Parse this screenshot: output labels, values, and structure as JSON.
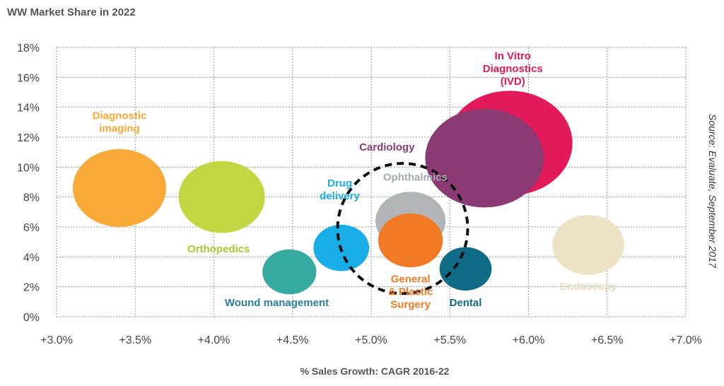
{
  "chart_data": {
    "type": "scatter",
    "title": "WW Market Share in 2022",
    "xlabel": "% Sales Growth: CAGR 2016-22",
    "ylabel": "",
    "source": "Source: Evaluate, September 2017",
    "xlim": [
      3.0,
      7.0
    ],
    "ylim": [
      0,
      18
    ],
    "x_ticks": [
      {
        "value": 3.0,
        "label": "+3.0%"
      },
      {
        "value": 3.5,
        "label": "+3.5%"
      },
      {
        "value": 4.0,
        "label": "+4.0%"
      },
      {
        "value": 4.5,
        "label": "+4.5%"
      },
      {
        "value": 5.0,
        "label": "+5.0%"
      },
      {
        "value": 5.5,
        "label": "+5.5%"
      },
      {
        "value": 6.0,
        "label": "+6.0%"
      },
      {
        "value": 6.5,
        "label": "+6.5%"
      },
      {
        "value": 7.0,
        "label": "+7.0%"
      }
    ],
    "y_ticks": [
      {
        "value": 0,
        "label": "0%"
      },
      {
        "value": 2,
        "label": "2%"
      },
      {
        "value": 4,
        "label": "4%"
      },
      {
        "value": 6,
        "label": "6%"
      },
      {
        "value": 8,
        "label": "8%"
      },
      {
        "value": 10,
        "label": "10%"
      },
      {
        "value": 12,
        "label": "12%"
      },
      {
        "value": 14,
        "label": "14%"
      },
      {
        "value": 16,
        "label": "16%"
      },
      {
        "value": 18,
        "label": "18%"
      }
    ],
    "grid": true,
    "bubbles": [
      {
        "name": "Diagnostic imaging",
        "label_lines": [
          "Diagnostic",
          "imaging"
        ],
        "x": 3.4,
        "y": 8.6,
        "size": 5.2,
        "color": "#F9A937",
        "label_color": "#F9A937",
        "label_dx": 3.4,
        "label_dy": 13.2
      },
      {
        "name": "Orthopedics",
        "label_lines": [
          "Orthopedics"
        ],
        "x": 4.05,
        "y": 8.0,
        "size": 4.8,
        "color": "#C2D641",
        "label_color": "#AFC634",
        "label_dx": 4.03,
        "label_dy": 4.3
      },
      {
        "name": "Wound management",
        "label_lines": [
          "Wound management"
        ],
        "x": 4.48,
        "y": 3.0,
        "size": 3.0,
        "color": "#35ABA0",
        "label_color": "#2A7FA0",
        "label_dx": 4.4,
        "label_dy": 0.7
      },
      {
        "name": "Drug delivery",
        "label_lines": [
          "Drug",
          "delivery"
        ],
        "x": 4.81,
        "y": 4.6,
        "size": 3.1,
        "color": "#19AEE8",
        "label_color": "#19AEE8",
        "label_dx": 4.8,
        "label_dy": 8.7
      },
      {
        "name": "Ophthalmics",
        "label_lines": [
          "Ophthalmics"
        ],
        "x": 5.25,
        "y": 6.4,
        "size": 3.9,
        "color": "#B3B4B6",
        "label_color": "#A9AAAC",
        "label_dx": 5.28,
        "label_dy": 9.1
      },
      {
        "name": "General & Plastic Surgery",
        "label_lines": [
          "General",
          "& Plastic",
          "Surgery"
        ],
        "x": 5.25,
        "y": 5.1,
        "size": 3.6,
        "color": "#F37A25",
        "label_color": "#F37A25",
        "label_dx": 5.25,
        "label_dy": 2.3
      },
      {
        "name": "Dental",
        "label_lines": [
          "Dental"
        ],
        "x": 5.6,
        "y": 3.2,
        "size": 2.9,
        "color": "#0F6B86",
        "label_color": "#0F6B86",
        "label_dx": 5.6,
        "label_dy": 0.7
      },
      {
        "name": "In Vitro Diagnostics (IVD)",
        "label_lines": [
          "In Vitro",
          "Diagnostics",
          "(IVD)"
        ],
        "x": 5.88,
        "y": 11.6,
        "size": 7.0,
        "color": "#E31A5A",
        "label_color": "#E31A5A",
        "label_dx": 5.9,
        "label_dy": 17.2
      },
      {
        "name": "Cardiology",
        "label_lines": [
          "Cardiology"
        ],
        "x": 5.72,
        "y": 10.6,
        "size": 6.6,
        "color": "#8B3A73",
        "label_color": "#8B3A73",
        "label_dx": 5.1,
        "label_dy": 11.1
      },
      {
        "name": "Endoscopy",
        "label_lines": [
          "Endoscopy"
        ],
        "x": 6.38,
        "y": 4.8,
        "size": 4.0,
        "color": "#EEE2C6",
        "label_color": "#E8DCC0",
        "label_dx": 6.38,
        "label_dy": 1.8
      }
    ],
    "highlight": {
      "name": "Ophthalmics / General & Plastic Surgery group",
      "x": 5.2,
      "y": 5.9,
      "style": "dashed-circle"
    }
  }
}
